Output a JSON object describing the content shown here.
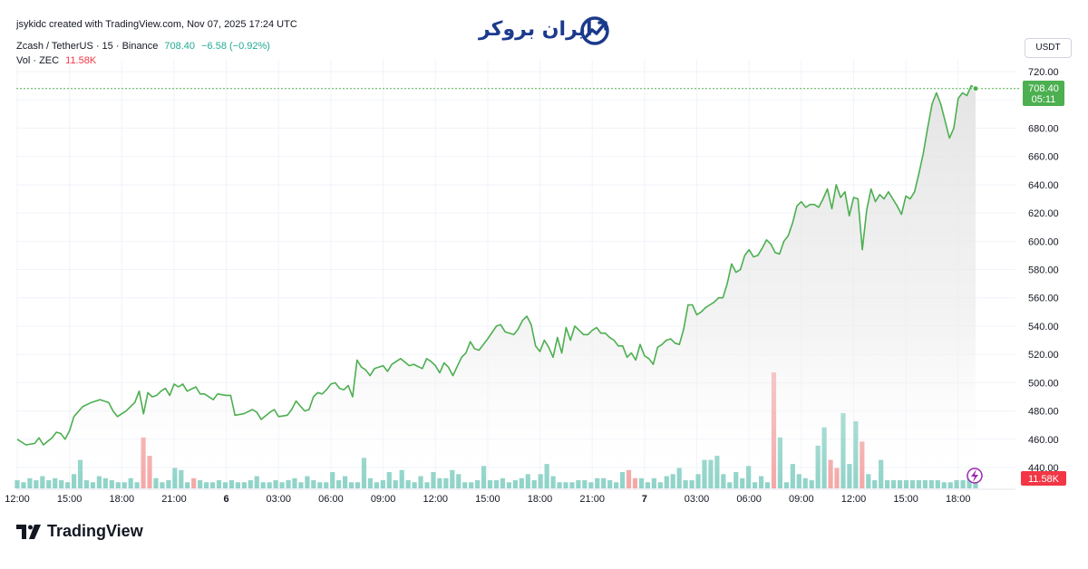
{
  "header": {
    "byline": "jsykidc created with TradingView.com, Nov 07, 2025 17:24 UTC",
    "symbol_line": "Zcash / TetherUS · 15 · Binance",
    "price": "708.40",
    "change": "−6.58 (−0.92%)",
    "vol_label": "Vol · ZEC",
    "vol_value": "11.58K",
    "unit": "USDT"
  },
  "logo": {
    "text": "ایران بروکر",
    "icon": "chart-growth-icon"
  },
  "footer": {
    "brand": "TradingView",
    "icon": "tradingview-logo-icon"
  },
  "price_tag": {
    "value": "708.40",
    "countdown": "05:11"
  },
  "volume_tag": "11.58K",
  "colors": {
    "line": "#4caf50",
    "up_volume": "#8fd3c8",
    "down_volume": "#f4a7a7",
    "price_tag": "#4caf50",
    "volume_tag": "#f23645"
  },
  "chart_data": {
    "type": "line",
    "title": "Zcash / TetherUS · 15 · Binance",
    "xlabel": "",
    "ylabel": "",
    "ylim": [
      430,
      725
    ],
    "y_ticks": [
      "720.00",
      "700.00",
      "680.00",
      "660.00",
      "640.00",
      "620.00",
      "600.00",
      "580.00",
      "560.00",
      "540.00",
      "520.00",
      "500.00",
      "480.00",
      "460.00",
      "440.00"
    ],
    "x_ticks": [
      {
        "label": "12:00",
        "t": 0
      },
      {
        "label": "15:00",
        "t": 12
      },
      {
        "label": "18:00",
        "t": 24
      },
      {
        "label": "21:00",
        "t": 36
      },
      {
        "label": "6",
        "t": 48
      },
      {
        "label": "03:00",
        "t": 60
      },
      {
        "label": "06:00",
        "t": 72
      },
      {
        "label": "09:00",
        "t": 84
      },
      {
        "label": "12:00",
        "t": 96
      },
      {
        "label": "15:00",
        "t": 108
      },
      {
        "label": "18:00",
        "t": 120
      },
      {
        "label": "21:00",
        "t": 132
      },
      {
        "label": "7",
        "t": 144
      },
      {
        "label": "03:00",
        "t": 156
      },
      {
        "label": "06:00",
        "t": 168
      },
      {
        "label": "09:00",
        "t": 180
      },
      {
        "label": "12:00",
        "t": 192
      },
      {
        "label": "15:00",
        "t": 204
      },
      {
        "label": "18:00",
        "t": 216
      }
    ],
    "series": [
      {
        "type": "line",
        "x_unit": "15-minute bars from Nov 05 12:00",
        "points": [
          [
            0,
            460
          ],
          [
            2,
            456
          ],
          [
            4,
            457
          ],
          [
            5,
            461
          ],
          [
            6,
            456
          ],
          [
            8,
            461
          ],
          [
            9,
            465
          ],
          [
            10,
            464
          ],
          [
            11,
            460
          ],
          [
            12,
            466
          ],
          [
            13,
            476
          ],
          [
            15,
            483
          ],
          [
            17,
            486
          ],
          [
            19,
            488
          ],
          [
            21,
            486
          ],
          [
            22,
            480
          ],
          [
            23,
            476
          ],
          [
            25,
            480
          ],
          [
            27,
            486
          ],
          [
            28,
            494
          ],
          [
            29,
            478
          ],
          [
            30,
            493
          ],
          [
            31,
            490
          ],
          [
            32,
            491
          ],
          [
            33,
            494
          ],
          [
            34,
            496
          ],
          [
            35,
            491
          ],
          [
            36,
            499
          ],
          [
            37,
            497
          ],
          [
            38,
            499
          ],
          [
            39,
            494
          ],
          [
            41,
            497
          ],
          [
            42,
            492
          ],
          [
            43,
            492
          ],
          [
            45,
            488
          ],
          [
            46,
            492
          ],
          [
            48,
            491
          ],
          [
            49,
            491
          ],
          [
            50,
            477
          ],
          [
            52,
            478
          ],
          [
            54,
            481
          ],
          [
            55,
            479
          ],
          [
            56,
            474
          ],
          [
            58,
            479
          ],
          [
            59,
            481
          ],
          [
            60,
            476
          ],
          [
            62,
            477
          ],
          [
            63,
            481
          ],
          [
            64,
            487
          ],
          [
            66,
            480
          ],
          [
            67,
            481
          ],
          [
            68,
            490
          ],
          [
            69,
            493
          ],
          [
            70,
            492
          ],
          [
            71,
            495
          ],
          [
            72,
            499
          ],
          [
            73,
            500
          ],
          [
            74,
            496
          ],
          [
            75,
            495
          ],
          [
            76,
            498
          ],
          [
            77,
            490
          ],
          [
            78,
            516
          ],
          [
            79,
            511
          ],
          [
            80,
            509
          ],
          [
            81,
            505
          ],
          [
            82,
            510
          ],
          [
            84,
            512
          ],
          [
            85,
            508
          ],
          [
            86,
            513
          ],
          [
            88,
            517
          ],
          [
            90,
            512
          ],
          [
            91,
            513
          ],
          [
            93,
            510
          ],
          [
            94,
            517
          ],
          [
            95,
            515
          ],
          [
            96,
            512
          ],
          [
            97,
            507
          ],
          [
            98,
            514
          ],
          [
            99,
            511
          ],
          [
            100,
            505
          ],
          [
            102,
            518
          ],
          [
            103,
            521
          ],
          [
            104,
            529
          ],
          [
            105,
            524
          ],
          [
            106,
            523
          ],
          [
            108,
            531
          ],
          [
            110,
            540
          ],
          [
            111,
            541
          ],
          [
            112,
            536
          ],
          [
            114,
            534
          ],
          [
            115,
            538
          ],
          [
            116,
            544
          ],
          [
            117,
            547
          ],
          [
            118,
            541
          ],
          [
            119,
            526
          ],
          [
            120,
            522
          ],
          [
            121,
            530
          ],
          [
            122,
            525
          ],
          [
            123,
            518
          ],
          [
            124,
            532
          ],
          [
            125,
            521
          ],
          [
            126,
            539
          ],
          [
            127,
            530
          ],
          [
            128,
            540
          ],
          [
            129,
            537
          ],
          [
            130,
            534
          ],
          [
            131,
            534
          ],
          [
            132,
            537
          ],
          [
            133,
            539
          ],
          [
            134,
            535
          ],
          [
            135,
            535
          ],
          [
            136,
            532
          ],
          [
            137,
            530
          ],
          [
            138,
            526
          ],
          [
            139,
            526
          ],
          [
            140,
            518
          ],
          [
            141,
            521
          ],
          [
            142,
            516
          ],
          [
            143,
            527
          ],
          [
            144,
            519
          ],
          [
            145,
            517
          ],
          [
            146,
            513
          ],
          [
            147,
            525
          ],
          [
            148,
            527
          ],
          [
            149,
            530
          ],
          [
            150,
            531
          ],
          [
            151,
            528
          ],
          [
            152,
            527
          ],
          [
            153,
            538
          ],
          [
            154,
            555
          ],
          [
            155,
            555
          ],
          [
            156,
            548
          ],
          [
            157,
            550
          ],
          [
            158,
            553
          ],
          [
            159,
            555
          ],
          [
            160,
            557
          ],
          [
            161,
            560
          ],
          [
            162,
            560
          ],
          [
            163,
            570
          ],
          [
            164,
            584
          ],
          [
            165,
            578
          ],
          [
            166,
            580
          ],
          [
            167,
            590
          ],
          [
            168,
            594
          ],
          [
            169,
            589
          ],
          [
            170,
            590
          ],
          [
            171,
            595
          ],
          [
            172,
            601
          ],
          [
            173,
            598
          ],
          [
            174,
            592
          ],
          [
            175,
            591
          ],
          [
            176,
            600
          ],
          [
            177,
            604
          ],
          [
            178,
            613
          ],
          [
            179,
            625
          ],
          [
            180,
            628
          ],
          [
            181,
            624
          ],
          [
            182,
            626
          ],
          [
            183,
            626
          ],
          [
            184,
            624
          ],
          [
            185,
            630
          ],
          [
            186,
            637
          ],
          [
            187,
            623
          ],
          [
            188,
            640
          ],
          [
            189,
            631
          ],
          [
            190,
            635
          ],
          [
            191,
            618
          ],
          [
            192,
            631
          ],
          [
            193,
            630
          ],
          [
            194,
            594
          ],
          [
            195,
            622
          ],
          [
            196,
            637
          ],
          [
            197,
            628
          ],
          [
            198,
            633
          ],
          [
            199,
            630
          ],
          [
            200,
            635
          ],
          [
            201,
            630
          ],
          [
            202,
            625
          ],
          [
            203,
            619
          ],
          [
            204,
            632
          ],
          [
            205,
            630
          ],
          [
            206,
            635
          ],
          [
            207,
            648
          ],
          [
            208,
            662
          ],
          [
            209,
            680
          ],
          [
            210,
            697
          ],
          [
            211,
            705
          ],
          [
            212,
            697
          ],
          [
            213,
            685
          ],
          [
            214,
            673
          ],
          [
            215,
            680
          ],
          [
            216,
            701
          ],
          [
            217,
            705
          ],
          [
            218,
            703
          ],
          [
            219,
            710
          ],
          [
            220,
            708
          ]
        ]
      },
      {
        "type": "volume",
        "step": 2,
        "values": [
          4,
          3,
          5,
          4,
          6,
          4,
          5,
          4,
          3,
          7,
          14,
          4,
          3,
          6,
          5,
          4,
          3,
          3,
          5,
          3,
          25,
          16,
          5,
          3,
          4,
          10,
          9,
          3,
          5,
          4,
          3,
          3,
          4,
          3,
          4,
          3,
          3,
          4,
          6,
          3,
          3,
          4,
          3,
          4,
          5,
          3,
          6,
          4,
          3,
          3,
          8,
          4,
          6,
          3,
          3,
          15,
          5,
          3,
          4,
          8,
          4,
          9,
          4,
          3,
          6,
          3,
          8,
          5,
          5,
          9,
          7,
          3,
          3,
          4,
          11,
          4,
          4,
          5,
          3,
          4,
          5,
          7,
          4,
          7,
          12,
          6,
          3,
          3,
          3,
          4,
          4,
          3,
          5,
          5,
          4,
          3,
          8,
          9,
          5,
          5,
          3,
          5,
          3,
          6,
          7,
          10,
          4,
          4,
          7,
          14,
          14,
          16,
          7,
          3,
          8,
          5,
          11,
          3,
          6,
          3,
          57,
          25,
          3,
          12,
          7,
          5,
          4,
          21,
          30,
          14,
          10,
          37,
          12,
          33,
          23,
          7,
          4,
          14,
          4,
          4,
          4,
          4,
          4,
          4,
          4,
          4,
          4,
          3,
          3,
          4,
          4,
          5,
          5
        ],
        "down": [
          20,
          21,
          28,
          97,
          98,
          120,
          129,
          130,
          134
        ]
      }
    ]
  }
}
